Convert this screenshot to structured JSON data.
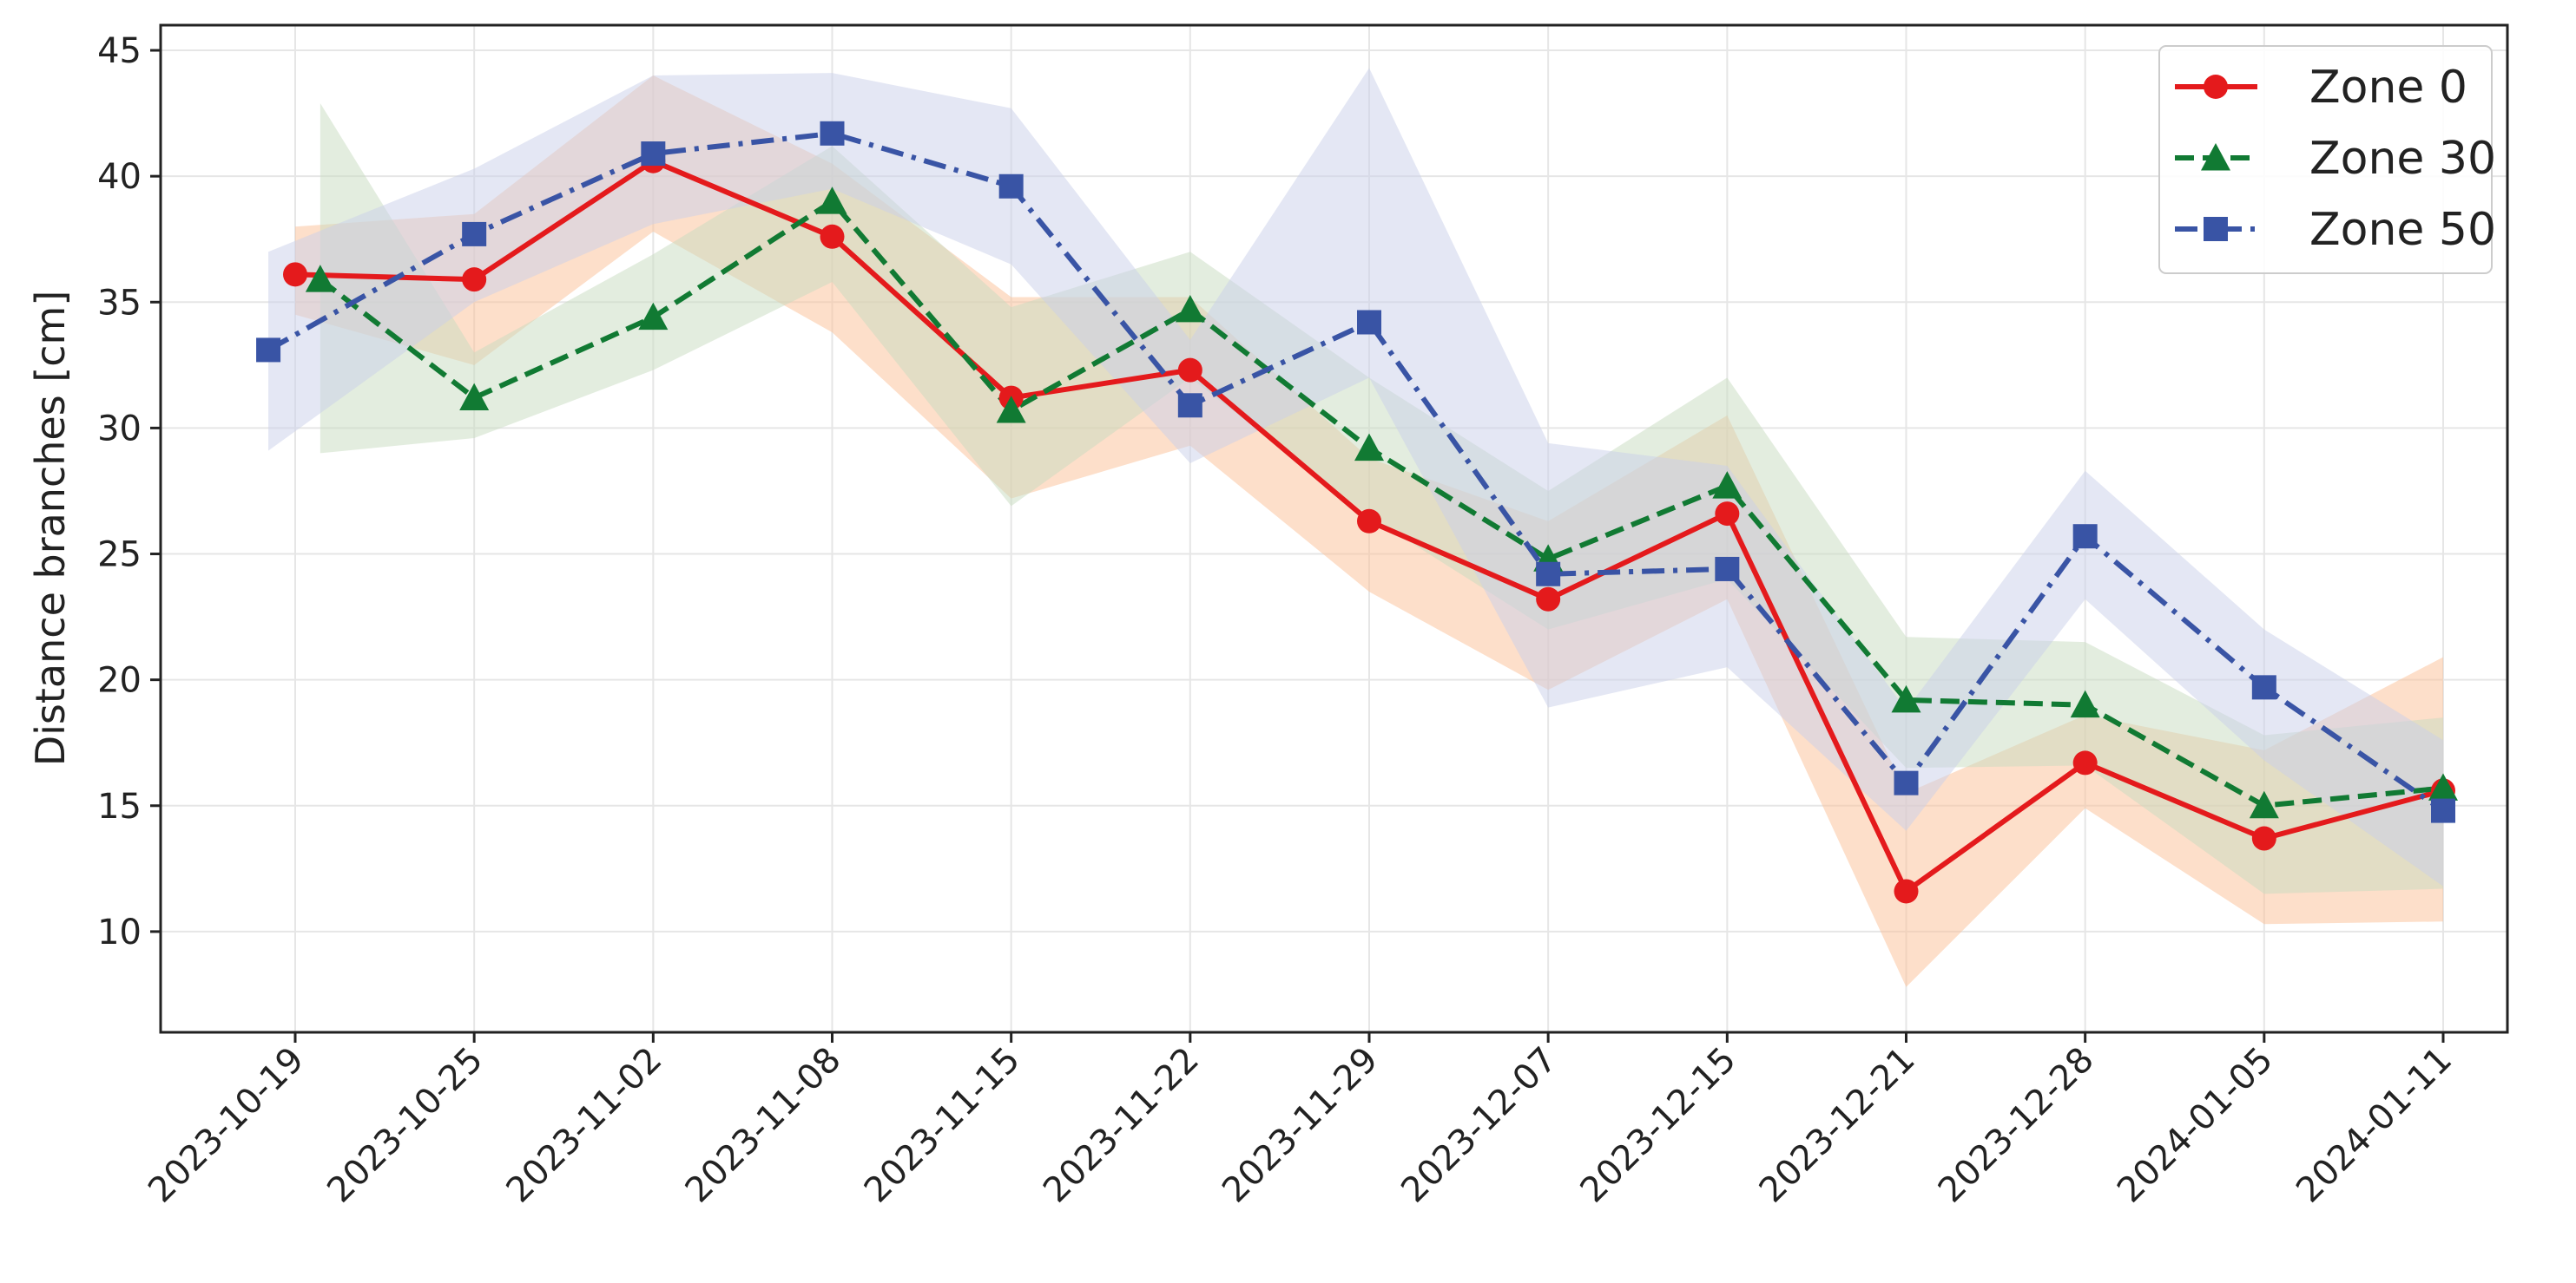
{
  "chart_data": {
    "type": "line",
    "title": "",
    "xlabel": "",
    "ylabel": "Distance branches [cm]",
    "ylim": [
      6,
      46
    ],
    "yticks": [
      10,
      15,
      20,
      25,
      30,
      35,
      40,
      45
    ],
    "grid": true,
    "legend_position": "top-right",
    "categories": [
      "2023-10-19",
      "2023-10-25",
      "2023-11-02",
      "2023-11-08",
      "2023-11-15",
      "2023-11-22",
      "2023-11-29",
      "2023-12-07",
      "2023-12-15",
      "2023-12-21",
      "2023-12-28",
      "2024-01-05",
      "2024-01-11"
    ],
    "series": [
      {
        "name": "Zone 0",
        "color": "#e41a1c",
        "band_color": "#fcbf96",
        "marker": "circle",
        "linestyle": "solid",
        "x": [
          0,
          1,
          2,
          3,
          4,
          5,
          6,
          7,
          8,
          9,
          10,
          11,
          12
        ],
        "values": [
          36.1,
          35.9,
          40.6,
          37.6,
          31.2,
          32.3,
          26.3,
          23.2,
          26.6,
          11.6,
          16.7,
          13.7,
          15.6
        ],
        "upper": [
          38.0,
          38.5,
          44.0,
          40.5,
          35.2,
          35.2,
          28.8,
          26.3,
          30.5,
          15.5,
          18.6,
          17.2,
          20.9
        ],
        "lower": [
          34.5,
          32.5,
          37.8,
          33.8,
          27.2,
          29.3,
          23.5,
          19.6,
          23.2,
          7.8,
          14.9,
          10.3,
          10.4
        ]
      },
      {
        "name": "Zone 30",
        "color": "#117a33",
        "band_color": "#c7dbbf",
        "marker": "triangle",
        "linestyle": "dashed",
        "x": [
          0.14,
          1,
          2,
          3,
          4,
          5,
          6,
          7,
          8,
          9,
          10,
          11,
          12
        ],
        "values": [
          35.9,
          31.2,
          34.4,
          39.0,
          30.7,
          34.7,
          29.2,
          24.8,
          27.7,
          19.2,
          19.0,
          15.0,
          15.7
        ],
        "upper": [
          42.9,
          33.0,
          36.9,
          41.2,
          34.8,
          37.0,
          32.0,
          27.5,
          32.0,
          21.7,
          21.5,
          17.8,
          18.5
        ],
        "lower": [
          29.0,
          29.6,
          32.3,
          35.8,
          26.9,
          32.0,
          26.5,
          22.0,
          24.0,
          16.5,
          16.6,
          11.5,
          11.7
        ]
      },
      {
        "name": "Zone 50",
        "color": "#3954a5",
        "band_color": "#c9cfea",
        "marker": "square",
        "linestyle": "dashdot",
        "x": [
          -0.15,
          1,
          2,
          3,
          4,
          5,
          6,
          7,
          8,
          9,
          10,
          11,
          12
        ],
        "values": [
          33.1,
          37.7,
          40.9,
          41.7,
          39.6,
          30.9,
          34.2,
          24.2,
          24.4,
          15.9,
          25.7,
          19.7,
          14.8
        ],
        "upper": [
          37.0,
          40.3,
          44.0,
          44.1,
          42.7,
          33.5,
          44.3,
          29.4,
          28.5,
          18.8,
          28.3,
          22.0,
          17.6
        ],
        "lower": [
          29.1,
          35.0,
          38.1,
          39.5,
          36.5,
          28.6,
          32.0,
          18.9,
          20.5,
          14.0,
          23.2,
          16.8,
          11.8
        ]
      }
    ]
  }
}
